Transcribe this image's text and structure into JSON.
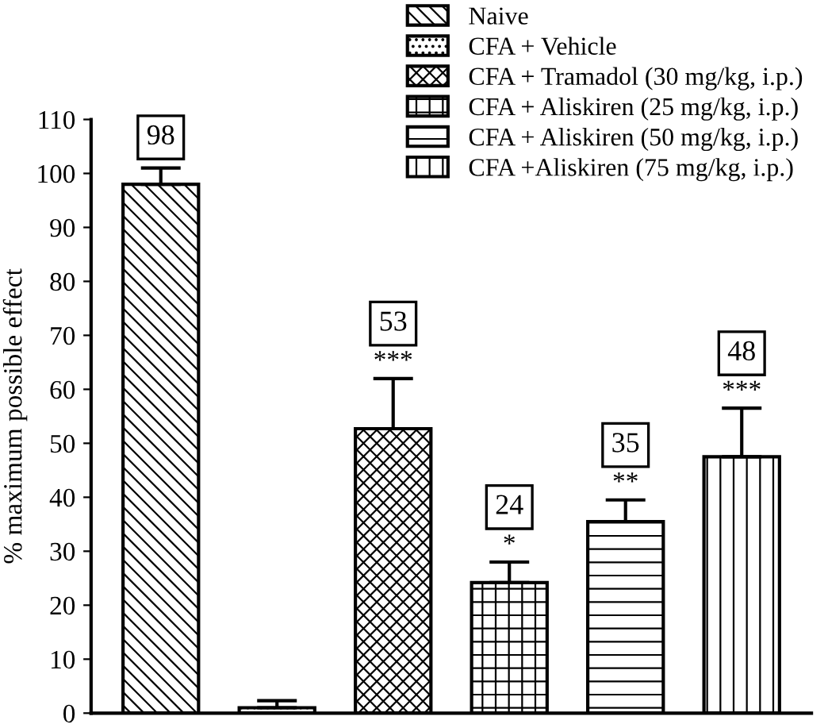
{
  "chart_data": {
    "type": "bar",
    "ylabel": "% maximum possible effect",
    "categories": [
      null,
      null,
      null,
      null,
      null,
      null
    ],
    "series": [
      {
        "name": "Naive",
        "color": "#000000",
        "values": [
          98,
          null,
          null,
          null,
          null,
          null
        ],
        "errors": [
          3,
          null,
          null,
          null,
          null,
          null
        ]
      },
      {
        "name": "CFA + Vehicle",
        "color": "#000000",
        "values": [
          null,
          1,
          null,
          null,
          null,
          null
        ],
        "errors": [
          null,
          1.3,
          null,
          null,
          null,
          null
        ]
      },
      {
        "name": "CFA + Tramadol (30 mg/kg, i.p.)",
        "color": "#000000",
        "values": [
          null,
          null,
          52.7,
          null,
          null,
          null
        ],
        "errors": [
          null,
          null,
          9.3,
          null,
          null,
          null
        ]
      },
      {
        "name": "CFA + Aliskiren (25 mg/kg, i.p.)",
        "color": "#000000",
        "values": [
          null,
          null,
          null,
          24.2,
          null,
          null
        ],
        "errors": [
          null,
          null,
          null,
          3.8,
          null,
          null
        ]
      },
      {
        "name": "CFA + Aliskiren (50 mg/kg, i.p.)",
        "color": "#000000",
        "values": [
          null,
          null,
          null,
          null,
          35.5,
          null
        ],
        "errors": [
          null,
          null,
          null,
          null,
          4,
          null
        ]
      },
      {
        "name": "CFA +Aliskiren (75 mg/kg, i.p.)",
        "color": "#000000",
        "values": [
          null,
          null,
          null,
          null,
          null,
          47.5
        ],
        "errors": [
          null,
          null,
          null,
          null,
          null,
          9
        ]
      }
    ],
    "annotations": [
      {
        "text": "98",
        "y": 101
      },
      {
        "text": "***",
        "y": 62
      },
      {
        "text": "53",
        "y": 62
      },
      {
        "text": "*",
        "y": 28
      },
      {
        "text": "24",
        "y": 28
      },
      {
        "text": "**",
        "y": 39.5
      },
      {
        "text": "35",
        "y": 39.5
      },
      {
        "text": "***",
        "y": 56.5
      },
      {
        "text": "48",
        "y": 56.5
      }
    ],
    "ylim": [
      0,
      110
    ],
    "yticks": [
      0,
      10,
      20,
      30,
      40,
      50,
      60,
      70,
      80,
      90,
      100,
      110
    ],
    "legend": "top right",
    "grid": false
  }
}
